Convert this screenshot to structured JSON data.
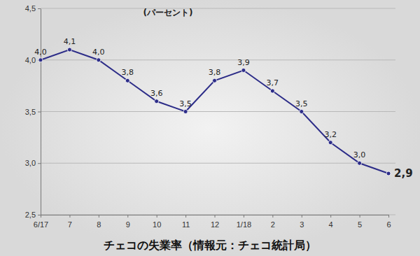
{
  "chart_data": {
    "type": "line",
    "title": "チェコの失業率（情報元：チェコ統計局）",
    "y_label": "(パーセント)",
    "categories": [
      "6/17",
      "7",
      "8",
      "9",
      "10",
      "11",
      "12",
      "1/18",
      "2",
      "3",
      "4",
      "5",
      "6"
    ],
    "values": [
      4.0,
      4.1,
      4.0,
      3.8,
      3.6,
      3.5,
      3.8,
      3.9,
      3.7,
      3.5,
      3.2,
      3.0,
      2.9
    ],
    "value_labels": [
      "4,0",
      "4,1",
      "4,0",
      "3,8",
      "3,6",
      "3,5",
      "3,8",
      "3,9",
      "3,7",
      "3,5",
      "3,2",
      "3,0",
      "2,9"
    ],
    "data_labels": true,
    "color": "#2c2c88",
    "marker": "circle",
    "line_style": "solid",
    "grid": true,
    "ylim": [
      2.5,
      4.5
    ],
    "yticks": [
      {
        "value": 2.5,
        "label": "2,5"
      },
      {
        "value": 3.0,
        "label": "3,0"
      },
      {
        "value": 3.5,
        "label": "3,5"
      },
      {
        "value": 4.0,
        "label": "4,0"
      },
      {
        "value": 4.5,
        "label": "4,5"
      }
    ]
  }
}
